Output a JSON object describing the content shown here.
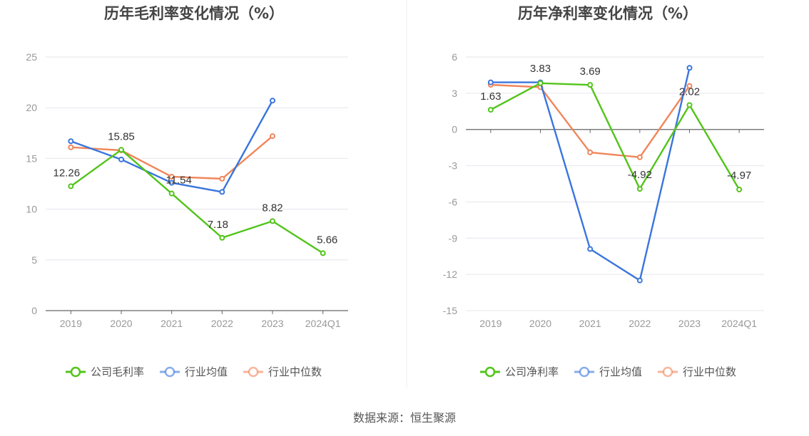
{
  "source": "数据来源：恒生聚源",
  "colors": {
    "company": "#52c41a",
    "avg": "#3a75dc",
    "median": "#f0855a"
  },
  "chart_data": [
    {
      "type": "line",
      "title": "历年毛利率变化情况（%）",
      "categories": [
        "2019",
        "2020",
        "2021",
        "2022",
        "2023",
        "2024Q1"
      ],
      "ylim": [
        0,
        25
      ],
      "yticks": [
        "25",
        "20",
        "15",
        "10",
        "5",
        "0"
      ],
      "series": [
        {
          "name": "公司毛利率",
          "key": "company",
          "values": [
            12.26,
            15.85,
            11.54,
            7.18,
            8.82,
            5.66
          ],
          "labels": [
            "12.26",
            "15.85",
            "11.54",
            "7.18",
            "8.82",
            "5.66"
          ]
        },
        {
          "name": "行业均值",
          "key": "avg",
          "values": [
            16.7,
            14.9,
            12.6,
            11.7,
            20.7,
            null
          ]
        },
        {
          "name": "行业中位数",
          "key": "median",
          "values": [
            16.1,
            15.8,
            13.2,
            13.0,
            17.2,
            null
          ]
        }
      ]
    },
    {
      "type": "line",
      "title": "历年净利率变化情况（%）",
      "categories": [
        "2019",
        "2020",
        "2021",
        "2022",
        "2023",
        "2024Q1"
      ],
      "ylim": [
        -15,
        6
      ],
      "yticks": [
        "6",
        "3",
        "0",
        "-3",
        "-6",
        "-9",
        "-12",
        "-15"
      ],
      "series": [
        {
          "name": "公司净利率",
          "key": "company",
          "values": [
            1.63,
            3.83,
            3.69,
            -4.92,
            2.02,
            -4.97
          ],
          "labels": [
            "1.63",
            "3.83",
            "3.69",
            "-4.92",
            "2.02",
            "-4.97"
          ]
        },
        {
          "name": "行业均值",
          "key": "avg",
          "values": [
            3.9,
            3.9,
            -9.9,
            -12.5,
            5.1,
            null
          ]
        },
        {
          "name": "行业中位数",
          "key": "median",
          "values": [
            3.7,
            3.5,
            -1.9,
            -2.3,
            3.6,
            null
          ]
        }
      ]
    }
  ]
}
